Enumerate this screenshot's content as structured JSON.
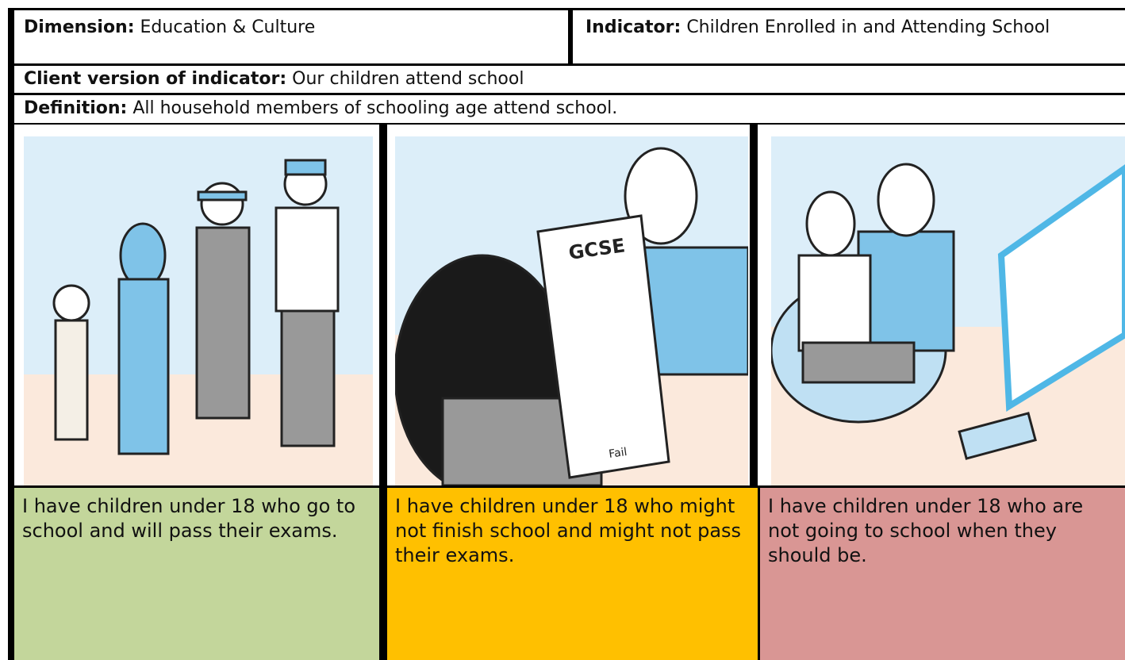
{
  "header": {
    "dimension": {
      "label": "Dimension:",
      "value": "Education & Culture"
    },
    "indicator": {
      "label": "Indicator:",
      "value": "Children Enrolled in and Attending School"
    }
  },
  "client_version": {
    "label": "Client version of indicator:",
    "value": "Our children attend school"
  },
  "definition": {
    "label": "Definition:",
    "value": "All household members of schooling age attend school."
  },
  "illustration": {
    "paper_title": "GCSE",
    "paper_result": "Fail"
  },
  "levels": [
    {
      "text": "I have children under 18 who go to school and will pass their exams."
    },
    {
      "text": "I have children under 18 who might not finish school and might not pass their exams."
    },
    {
      "text": "I have children under 18 who are not going to school when they should be."
    }
  ]
}
